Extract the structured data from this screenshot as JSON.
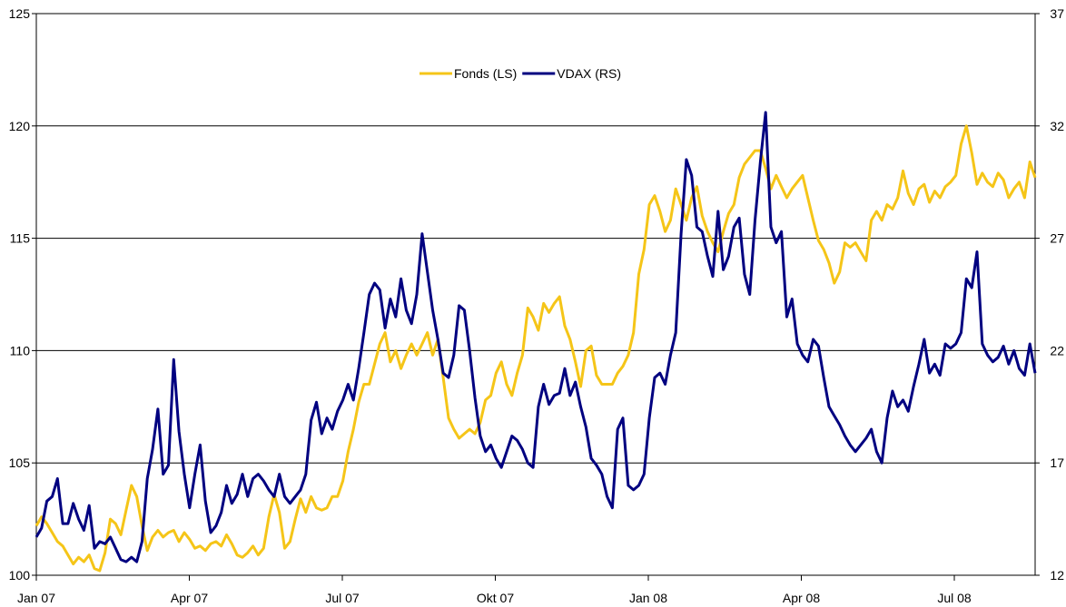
{
  "chart_data": {
    "type": "line",
    "title": "",
    "xlabel": "",
    "ylabel": "",
    "x_tick_labels": [
      "Jan 07",
      "Apr 07",
      "Jul 07",
      "Okt 07",
      "Jan 08",
      "Apr 08",
      "Jul 08"
    ],
    "left_axis": {
      "ylim": [
        100,
        125
      ],
      "ticks": [
        100,
        105,
        110,
        115,
        120,
        125
      ]
    },
    "right_axis": {
      "ylim": [
        12,
        37
      ],
      "ticks": [
        12,
        17,
        22,
        27,
        32,
        37
      ]
    },
    "grid": "horizontal",
    "legend_position": "top-center",
    "series": [
      {
        "name": "Fonds (LS)",
        "axis": "left",
        "color": "#F5C518",
        "values": [
          102.2,
          102.6,
          102.3,
          101.9,
          101.5,
          101.3,
          100.9,
          100.5,
          100.8,
          100.6,
          100.9,
          100.3,
          100.2,
          101.0,
          102.5,
          102.3,
          101.8,
          102.9,
          104.0,
          103.5,
          102.2,
          101.1,
          101.7,
          102.0,
          101.7,
          101.9,
          102.0,
          101.5,
          101.9,
          101.6,
          101.2,
          101.3,
          101.1,
          101.4,
          101.5,
          101.3,
          101.8,
          101.4,
          100.9,
          100.8,
          101.0,
          101.3,
          100.9,
          101.2,
          102.6,
          103.6,
          102.8,
          101.2,
          101.5,
          102.5,
          103.4,
          102.8,
          103.5,
          103.0,
          102.9,
          103.0,
          103.5,
          103.5,
          104.2,
          105.5,
          106.5,
          107.7,
          108.5,
          108.5,
          109.4,
          110.3,
          110.8,
          109.5,
          110.0,
          109.2,
          109.8,
          110.3,
          109.8,
          110.3,
          110.8,
          109.8,
          110.5,
          108.8,
          107.0,
          106.5,
          106.1,
          106.3,
          106.5,
          106.3,
          106.8,
          107.8,
          108.0,
          109.0,
          109.5,
          108.5,
          108.0,
          109.0,
          109.8,
          111.9,
          111.5,
          110.9,
          112.1,
          111.7,
          112.1,
          112.4,
          111.1,
          110.5,
          109.5,
          108.4,
          110.0,
          110.2,
          108.9,
          108.5,
          108.5,
          108.5,
          109.0,
          109.3,
          109.8,
          110.8,
          113.4,
          114.5,
          116.5,
          116.9,
          116.2,
          115.3,
          115.8,
          117.2,
          116.5,
          115.8,
          116.8,
          117.3,
          116.0,
          115.3,
          114.8,
          114.4,
          115.3,
          116.1,
          116.5,
          117.7,
          118.3,
          118.6,
          118.9,
          118.9,
          118.1,
          117.2,
          117.8,
          117.3,
          116.8,
          117.2,
          117.5,
          117.8,
          116.8,
          115.8,
          114.9,
          114.5,
          113.9,
          113.0,
          113.5,
          114.8,
          114.6,
          114.8,
          114.4,
          114.0,
          115.8,
          116.2,
          115.8,
          116.5,
          116.3,
          116.8,
          118.0,
          117.0,
          116.5,
          117.2,
          117.4,
          116.6,
          117.1,
          116.8,
          117.3,
          117.5,
          117.8,
          119.2,
          120.0,
          118.8,
          117.4,
          117.9,
          117.5,
          117.3,
          117.9,
          117.6,
          116.8,
          117.2,
          117.5,
          116.8,
          118.4,
          117.7
        ]
      },
      {
        "name": "VDAX (RS)",
        "axis": "right",
        "color": "#000080",
        "values": [
          13.7,
          14.1,
          15.3,
          15.5,
          16.3,
          14.3,
          14.3,
          15.2,
          14.5,
          14.0,
          15.1,
          13.2,
          13.5,
          13.4,
          13.7,
          13.2,
          12.7,
          12.6,
          12.8,
          12.6,
          13.5,
          16.3,
          17.6,
          19.4,
          16.5,
          16.9,
          21.6,
          18.4,
          16.5,
          15.0,
          16.5,
          17.8,
          15.3,
          13.9,
          14.2,
          14.8,
          16.0,
          15.2,
          15.6,
          16.5,
          15.5,
          16.3,
          16.5,
          16.2,
          15.8,
          15.5,
          16.5,
          15.5,
          15.2,
          15.5,
          15.8,
          16.5,
          18.9,
          19.7,
          18.3,
          19.0,
          18.5,
          19.3,
          19.8,
          20.5,
          19.8,
          21.2,
          22.8,
          24.5,
          25.0,
          24.7,
          23.0,
          24.3,
          23.5,
          25.2,
          23.8,
          23.2,
          24.5,
          27.2,
          25.5,
          23.8,
          22.5,
          21.0,
          20.8,
          21.8,
          24.0,
          23.8,
          22.0,
          19.9,
          18.2,
          17.5,
          17.8,
          17.2,
          16.8,
          17.5,
          18.2,
          18.0,
          17.6,
          17.0,
          16.8,
          19.5,
          20.5,
          19.6,
          20.0,
          20.1,
          21.2,
          20.0,
          20.6,
          19.5,
          18.6,
          17.2,
          16.9,
          16.5,
          15.5,
          15.0,
          18.5,
          19.0,
          16.0,
          15.8,
          16.0,
          16.5,
          19.0,
          20.8,
          21.0,
          20.5,
          21.8,
          22.8,
          27.2,
          30.5,
          29.8,
          27.5,
          27.3,
          26.2,
          25.3,
          28.2,
          25.6,
          26.2,
          27.5,
          27.9,
          25.4,
          24.5,
          27.8,
          30.4,
          32.6,
          27.5,
          26.8,
          27.3,
          23.5,
          24.3,
          22.3,
          21.8,
          21.5,
          22.5,
          22.2,
          20.8,
          19.5,
          19.1,
          18.7,
          18.2,
          17.8,
          17.5,
          17.8,
          18.1,
          18.5,
          17.5,
          17.0,
          19.0,
          20.2,
          19.5,
          19.8,
          19.3,
          20.4,
          21.4,
          22.5,
          21.0,
          21.4,
          20.9,
          22.3,
          22.1,
          22.3,
          22.8,
          25.2,
          24.8,
          26.4,
          22.3,
          21.8,
          21.5,
          21.7,
          22.2,
          21.4,
          22.0,
          21.2,
          20.9,
          22.3,
          21.0
        ]
      }
    ]
  }
}
